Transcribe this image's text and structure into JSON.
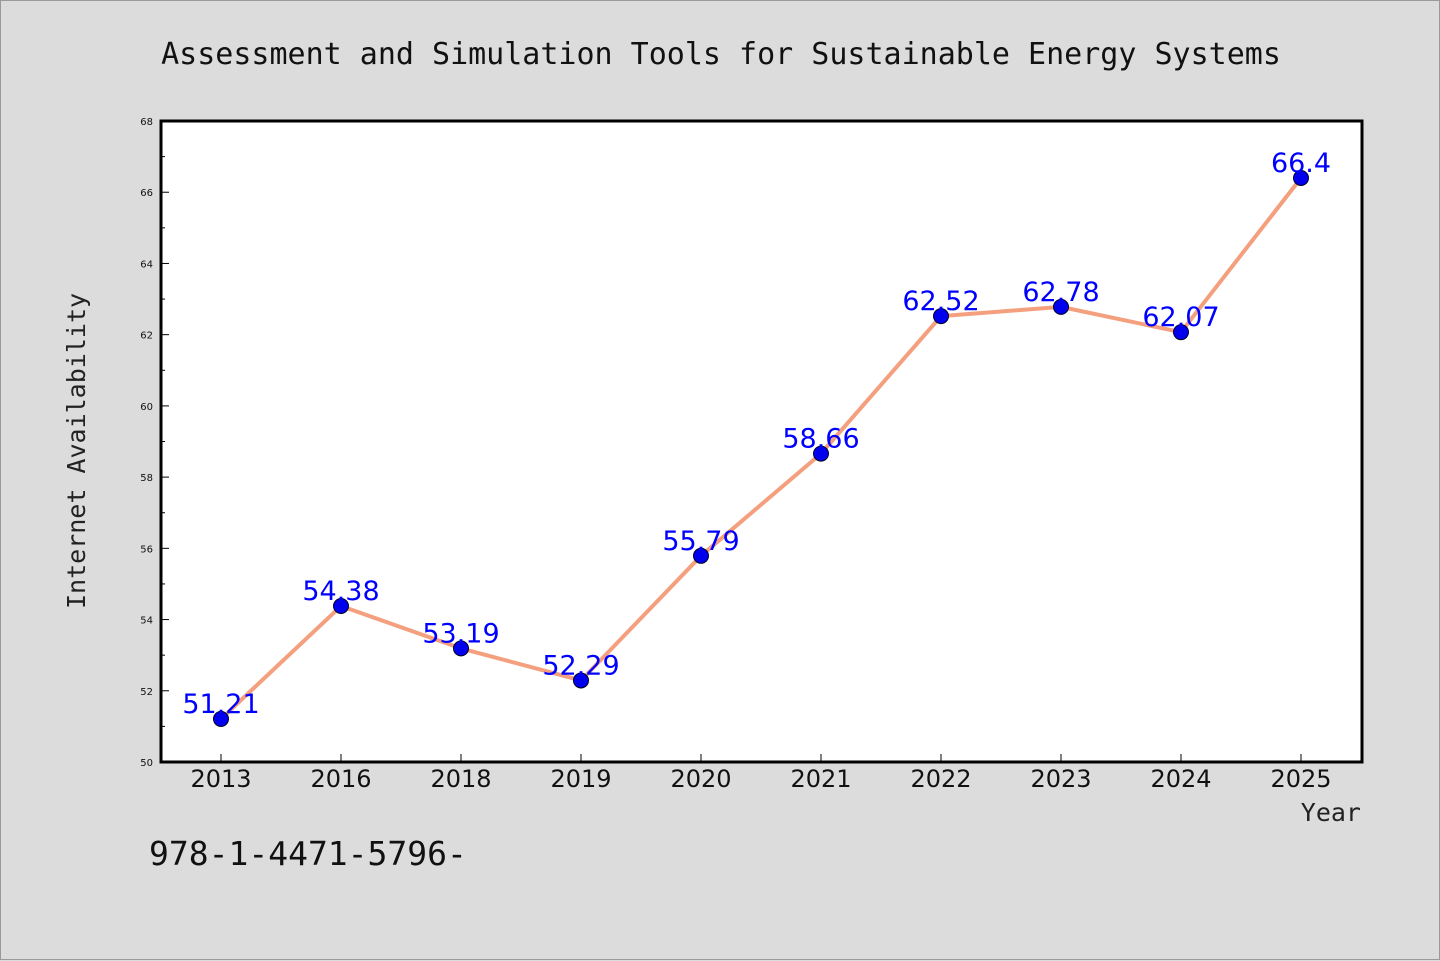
{
  "chart_data": {
    "type": "line",
    "title": "Assessment and Simulation Tools for Sustainable Energy Systems",
    "xlabel": "Year",
    "ylabel": "Internet Availability",
    "categories": [
      "2013",
      "2016",
      "2018",
      "2019",
      "2020",
      "2021",
      "2022",
      "2023",
      "2024",
      "2025"
    ],
    "series": [
      {
        "values": [
          51.21,
          54.38,
          53.19,
          52.29,
          55.79,
          58.66,
          62.52,
          62.78,
          62.07,
          66.4
        ],
        "data_labels": [
          "51.21",
          "54.38",
          "53.19",
          "52.29",
          "55.79",
          "58.66",
          "62.52",
          "62.78",
          "62.07",
          "66.4"
        ],
        "line_color": "#f4a07e",
        "marker_color": "#0000ee",
        "label_color": "#0000ff"
      }
    ],
    "ylim": [
      50,
      68
    ],
    "yticks": [
      "50",
      "52",
      "54",
      "56",
      "58",
      "60",
      "62",
      "64",
      "66",
      "68"
    ],
    "grid": false,
    "legend": "none"
  },
  "footnote": "978-1-4471-5796-"
}
